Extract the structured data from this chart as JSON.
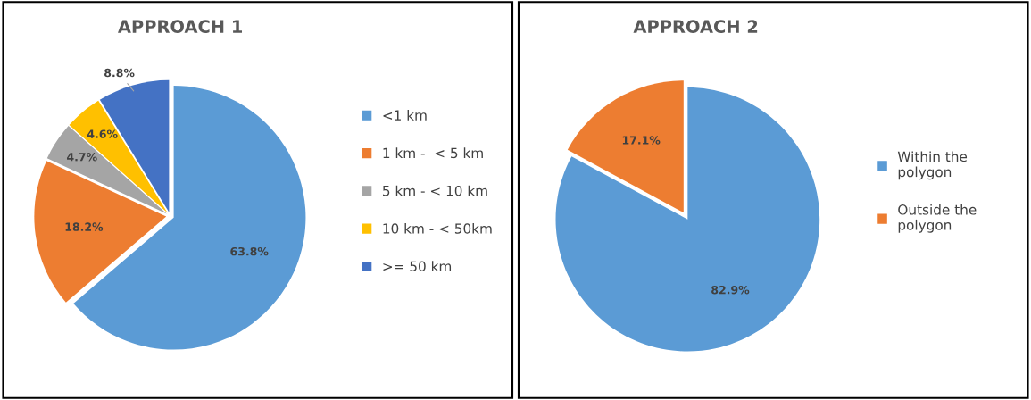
{
  "chart_data": [
    {
      "type": "pie",
      "title": "APPROACH 1",
      "categories": [
        "<1 km",
        "1 km -  < 5 km",
        "5 km - < 10 km",
        "10 km - < 50km",
        ">= 50 km"
      ],
      "values": [
        63.8,
        18.2,
        4.7,
        4.6,
        8.8
      ],
      "value_labels": [
        "63.8%",
        "18.2%",
        "4.7%",
        "4.6%",
        "8.8%"
      ],
      "colors": [
        "#5b9bd5",
        "#ed7d31",
        "#a5a5a5",
        "#ffc000",
        "#4472c4"
      ],
      "legend": "right"
    },
    {
      "type": "pie",
      "title": "APPROACH 2",
      "categories": [
        "Within the\npolygon",
        "Outside the\npolygon"
      ],
      "values": [
        82.9,
        17.1
      ],
      "value_labels": [
        "82.9%",
        "17.1%"
      ],
      "colors": [
        "#5b9bd5",
        "#ed7d31"
      ],
      "legend": "right"
    }
  ]
}
